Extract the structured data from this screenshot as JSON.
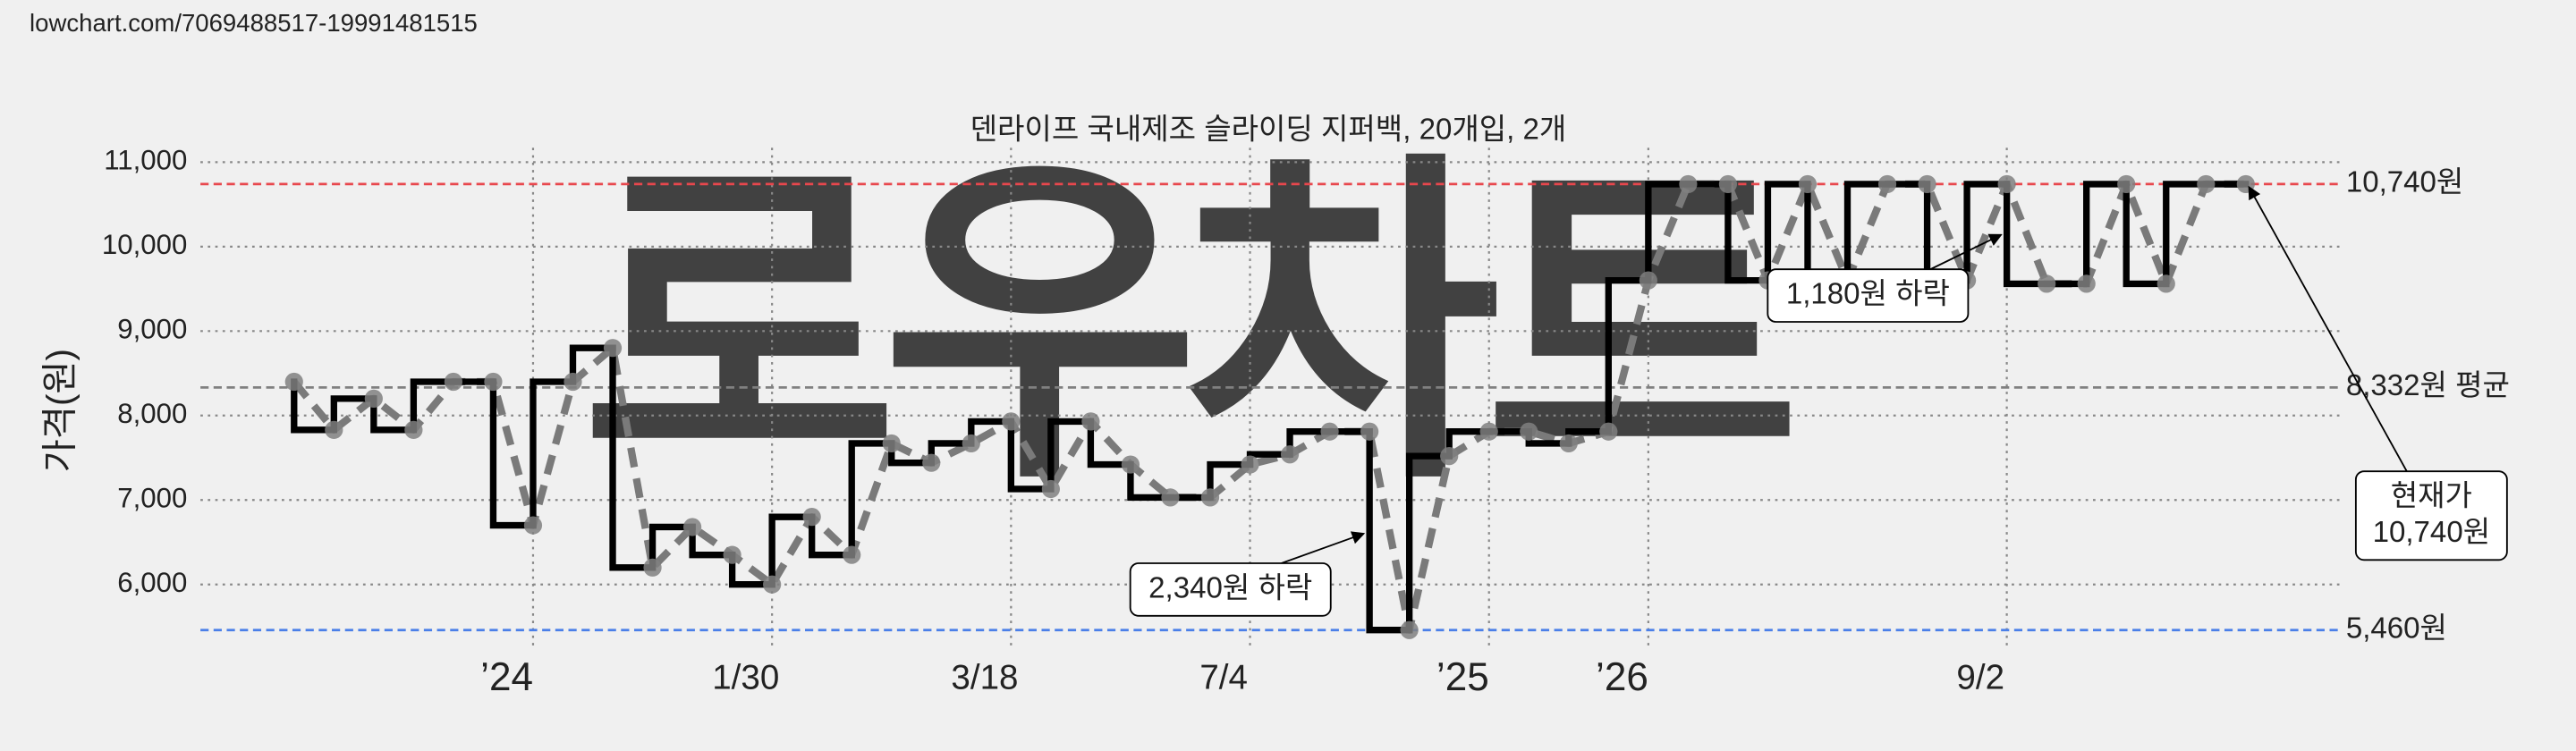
{
  "source_url": "lowchart.com/7069488517-19991481515",
  "chart_data": {
    "type": "step",
    "title": "덴라이프 국내제조 슬라이딩 지퍼백, 20개입, 2개",
    "watermark": "로우차트",
    "y_label": "가격(원)",
    "categories": [
      null,
      null,
      null,
      null,
      null,
      null,
      "’24",
      null,
      null,
      null,
      null,
      null,
      "1/30",
      null,
      null,
      null,
      null,
      null,
      "3/18",
      null,
      null,
      null,
      null,
      null,
      "7/4",
      null,
      null,
      null,
      null,
      null,
      "’25",
      null,
      null,
      null,
      "’26",
      null,
      null,
      null,
      null,
      null,
      null,
      null,
      null,
      "9/2",
      null,
      null,
      null,
      null,
      null,
      null
    ],
    "values": [
      8400,
      7830,
      8200,
      7830,
      8400,
      8400,
      6700,
      8400,
      8800,
      6200,
      6680,
      6350,
      6000,
      6800,
      6350,
      7670,
      7440,
      7670,
      7930,
      7130,
      7930,
      7420,
      7030,
      7030,
      7420,
      7540,
      7810,
      7810,
      5460,
      7520,
      7810,
      7810,
      7670,
      7810,
      9600,
      10740,
      10740,
      9600,
      10740,
      9600,
      10740,
      10740,
      9600,
      10740,
      9560,
      9560,
      10740,
      9560,
      10740,
      10740
    ],
    "step_color": "#000000",
    "line_color": "#7a7a7a",
    "marker_color": "#808080",
    "ylim": [
      5240,
      11170
    ],
    "yticks": [
      {
        "value": 6000,
        "label": "6,000"
      },
      {
        "value": 7000,
        "label": "7,000"
      },
      {
        "value": 8000,
        "label": "8,000"
      },
      {
        "value": 9000,
        "label": "9,000"
      },
      {
        "value": 10000,
        "label": "10,000"
      },
      {
        "value": 11000,
        "label": "11,000"
      }
    ],
    "grid": true,
    "reference_lines": [
      {
        "value": 10740,
        "label": "10,740원",
        "color": "#e8474d"
      },
      {
        "value": 5460,
        "label": "5,460원",
        "color": "#4a7fe8"
      },
      {
        "value": 8332,
        "label": "8,332원 평균",
        "color": "#808080"
      }
    ],
    "annotations": [
      "2,340원 하락",
      "1,180원 하락",
      "현재가\n10,740원"
    ]
  }
}
